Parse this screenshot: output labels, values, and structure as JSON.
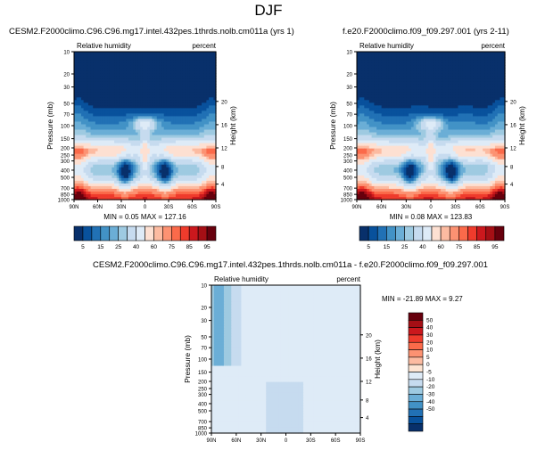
{
  "page_title": "DJF",
  "palette": {
    "seq": [
      "#08306b",
      "#08519c",
      "#2171b5",
      "#4292c6",
      "#6baed6",
      "#9ecae1",
      "#c6dbef",
      "#deebf7",
      "#fde0d2",
      "#fcbba1",
      "#fc9272",
      "#fb6a4a",
      "#ef3b2c",
      "#cb181d",
      "#a50f15",
      "#67000d"
    ],
    "div": [
      "#08306b",
      "#08519c",
      "#2171b5",
      "#4292c6",
      "#6baed6",
      "#9ecae1",
      "#c6dbef",
      "#deebf7",
      "#fde4d2",
      "#fcbba1",
      "#fc9272",
      "#fb6a4a",
      "#ef3b2c",
      "#cb181d",
      "#a50f15",
      "#67000d"
    ]
  },
  "chart_data": [
    {
      "type": "heatmap",
      "title": "CESM2.F2000climo.C96.C96.mg17.intel.432pes.1thrds.nolb.cm011a (yrs 1)",
      "left_label": "Relative humidity",
      "right_label": "percent",
      "ylabel": "Pressure (mb)",
      "y2label": "Height (km)",
      "x_ticks": [
        "90N",
        "60N",
        "30N",
        "0",
        "30S",
        "60S",
        "90S"
      ],
      "y_ticks": [
        "1000",
        "850",
        "700",
        "500",
        "400",
        "300",
        "250",
        "200",
        "150",
        "100",
        "70",
        "50",
        "30",
        "20",
        "10"
      ],
      "y2_ticks": [
        "4",
        "8",
        "12",
        "16",
        "20"
      ],
      "min_text": "MIN =  0.05  MAX = 127.16"
    },
    {
      "type": "heatmap",
      "title": "f.e20.F2000climo.f09_f09.297.001 (yrs 2-11)",
      "left_label": "Relative humidity",
      "right_label": "percent",
      "ylabel": "Pressure (mb)",
      "y2label": "Height (km)",
      "x_ticks": [
        "90N",
        "60N",
        "30N",
        "0",
        "30S",
        "60S",
        "90S"
      ],
      "y_ticks": [
        "1000",
        "850",
        "700",
        "500",
        "400",
        "300",
        "250",
        "200",
        "150",
        "100",
        "70",
        "50",
        "30",
        "20",
        "10"
      ],
      "y2_ticks": [
        "4",
        "8",
        "12",
        "16",
        "20"
      ],
      "min_text": "MIN =  0.08  MAX = 123.83"
    },
    {
      "type": "heatmap",
      "title": "CESM2.F2000climo.C96.C96.mg17.intel.432pes.1thrds.nolb.cm011a - f.e20.F2000climo.f09_f09.297.001",
      "left_label": "Relative humidity",
      "right_label": "percent",
      "ylabel": "Pressure (mb)",
      "y2label": "Height (km)",
      "x_ticks": [
        "90N",
        "60N",
        "30N",
        "0",
        "30S",
        "60S",
        "90S"
      ],
      "y_ticks": [
        "1000",
        "850",
        "700",
        "500",
        "400",
        "300",
        "250",
        "200",
        "150",
        "100",
        "70",
        "50",
        "30",
        "20",
        "10"
      ],
      "y2_ticks": [
        "4",
        "8",
        "12",
        "16",
        "20"
      ],
      "min_text": "MIN = -21.89  MAX =  9.27"
    }
  ],
  "colorbar_top": {
    "labels": [
      "5",
      "15",
      "25",
      "40",
      "60",
      "75",
      "85",
      "95"
    ]
  },
  "colorbar_diff": {
    "labels": [
      "50",
      "40",
      "30",
      "20",
      "10",
      "5",
      "0",
      "-5",
      "-10",
      "-20",
      "-30",
      "-40",
      "-50"
    ]
  }
}
